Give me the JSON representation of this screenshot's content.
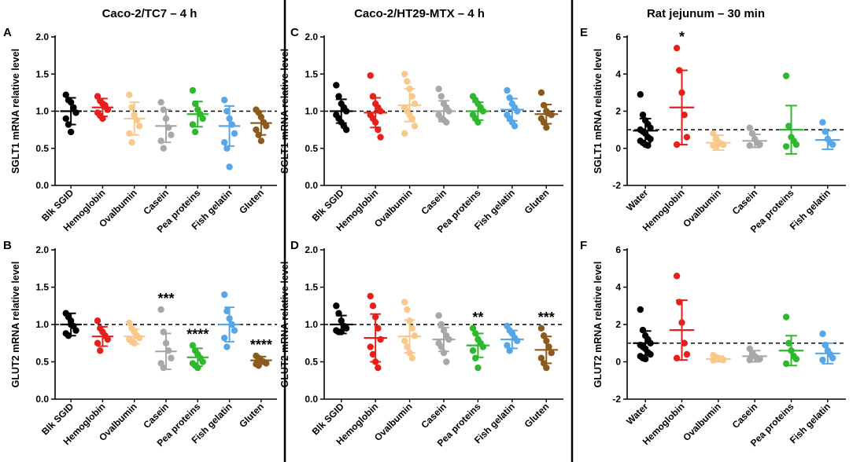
{
  "figure": {
    "columns": [
      {
        "title": "Caco-2/TC7 – 4 h"
      },
      {
        "title": "Caco-2/HT29-MTX – 4 h"
      },
      {
        "title": "Rat jejunum – 30 min"
      }
    ]
  },
  "colors": {
    "black": "#000000",
    "red": "#e8201c",
    "peach": "#f8c98a",
    "gray": "#a8a8a8",
    "green": "#2eb82e",
    "blue": "#56a6e8",
    "brown": "#8c5a1c"
  },
  "chart_data": [
    {
      "id": "A",
      "type": "scatter",
      "column": 0,
      "row": 0,
      "ylabel": "SGLT1 mRNA relative level",
      "ylim": [
        0,
        2.0
      ],
      "yticks": [
        "0.0",
        "0.5",
        "1.0",
        "1.5",
        "2.0"
      ],
      "ytick_values": [
        0,
        0.5,
        1.0,
        1.5,
        2.0
      ],
      "reference_line": 1.0,
      "categories": [
        "Blk SGID",
        "Hemoglobin",
        "Ovalbumin",
        "Casein",
        "Pea proteins",
        "Fish gelatin",
        "Gluten"
      ],
      "series": [
        {
          "name": "Blk SGID",
          "color": "black",
          "points": [
            1.22,
            1.15,
            1.12,
            1.05,
            0.98,
            0.9,
            0.82,
            0.72
          ],
          "mean": 1.0,
          "sd": 0.18,
          "sig": ""
        },
        {
          "name": "Hemoglobin",
          "color": "red",
          "points": [
            1.2,
            1.14,
            1.1,
            1.06,
            1.02,
            0.98,
            0.94,
            0.9,
            1.08
          ],
          "mean": 1.05,
          "sd": 0.12,
          "sig": ""
        },
        {
          "name": "Ovalbumin",
          "color": "peach",
          "points": [
            1.22,
            1.05,
            0.95,
            0.88,
            0.8,
            0.7,
            0.58
          ],
          "mean": 0.9,
          "sd": 0.22,
          "sig": ""
        },
        {
          "name": "Casein",
          "color": "gray",
          "points": [
            1.12,
            1.02,
            0.9,
            0.78,
            0.68,
            0.6,
            0.5
          ],
          "mean": 0.8,
          "sd": 0.22,
          "sig": ""
        },
        {
          "name": "Pea proteins",
          "color": "green",
          "points": [
            1.28,
            1.1,
            1.02,
            0.96,
            0.9,
            0.82,
            0.72
          ],
          "mean": 0.96,
          "sd": 0.17,
          "sig": ""
        },
        {
          "name": "Fish gelatin",
          "color": "blue",
          "points": [
            1.15,
            1.0,
            0.9,
            0.82,
            0.7,
            0.58,
            0.5,
            0.25
          ],
          "mean": 0.8,
          "sd": 0.27,
          "sig": ""
        },
        {
          "name": "Gluten",
          "color": "brown",
          "points": [
            1.02,
            0.98,
            0.92,
            0.85,
            0.8,
            0.75,
            0.68,
            0.6
          ],
          "mean": 0.84,
          "sd": 0.16,
          "sig": ""
        }
      ]
    },
    {
      "id": "B",
      "type": "scatter",
      "column": 0,
      "row": 1,
      "ylabel": "GLUT2 mRNA relative level",
      "ylim": [
        0,
        2.0
      ],
      "yticks": [
        "0.0",
        "0.5",
        "1.0",
        "1.5",
        "2.0"
      ],
      "ytick_values": [
        0,
        0.5,
        1.0,
        1.5,
        2.0
      ],
      "reference_line": 1.0,
      "categories": [
        "Blk SGID",
        "Hemoglobin",
        "Ovalbumin",
        "Casein",
        "Pea proteins",
        "Fish gelatin",
        "Gluten"
      ],
      "series": [
        {
          "name": "Blk SGID",
          "color": "black",
          "points": [
            1.15,
            1.1,
            1.05,
            0.98,
            0.92,
            0.88,
            0.85,
            1.0
          ],
          "mean": 1.0,
          "sd": 0.15,
          "sig": ""
        },
        {
          "name": "Hemoglobin",
          "color": "red",
          "points": [
            1.05,
            0.95,
            0.9,
            0.85,
            0.8,
            0.75,
            0.65
          ],
          "mean": 0.84,
          "sd": 0.13,
          "sig": ""
        },
        {
          "name": "Ovalbumin",
          "color": "peach",
          "points": [
            1.02,
            0.95,
            0.9,
            0.85,
            0.82,
            0.8,
            0.78,
            0.75
          ],
          "mean": 0.84,
          "sd": 0.1,
          "sig": ""
        },
        {
          "name": "Casein",
          "color": "gray",
          "points": [
            1.2,
            0.9,
            0.75,
            0.65,
            0.55,
            0.48,
            0.42
          ],
          "mean": 0.64,
          "sd": 0.24,
          "sig": "***"
        },
        {
          "name": "Pea proteins",
          "color": "green",
          "points": [
            0.72,
            0.65,
            0.6,
            0.55,
            0.5,
            0.48,
            0.45,
            0.42
          ],
          "mean": 0.56,
          "sd": 0.12,
          "sig": "****"
        },
        {
          "name": "Fish gelatin",
          "color": "blue",
          "points": [
            1.4,
            1.18,
            1.08,
            1.0,
            0.92,
            0.82,
            0.7
          ],
          "mean": 1.0,
          "sd": 0.23,
          "sig": ""
        },
        {
          "name": "Gluten",
          "color": "brown",
          "points": [
            0.58,
            0.55,
            0.52,
            0.5,
            0.48,
            0.47,
            0.45
          ],
          "mean": 0.52,
          "sd": 0.05,
          "sig": "****"
        }
      ]
    },
    {
      "id": "C",
      "type": "scatter",
      "column": 1,
      "row": 0,
      "ylabel": "SGLT1 mRNA relative level",
      "ylim": [
        0,
        2.0
      ],
      "yticks": [
        "0.0",
        "0.5",
        "1.0",
        "1.5",
        "2.0"
      ],
      "ytick_values": [
        0,
        0.5,
        1.0,
        1.5,
        2.0
      ],
      "reference_line": 1.0,
      "categories": [
        "Blk SGID",
        "Hemoglobin",
        "Ovalbumin",
        "Casein",
        "Pea proteins",
        "Fish gelatin",
        "Gluten"
      ],
      "series": [
        {
          "name": "Blk SGID",
          "color": "black",
          "points": [
            1.35,
            1.2,
            1.1,
            1.05,
            1.0,
            0.95,
            0.9,
            0.85,
            0.8,
            0.75
          ],
          "mean": 1.0,
          "sd": 0.16,
          "sig": ""
        },
        {
          "name": "Hemoglobin",
          "color": "red",
          "points": [
            1.48,
            1.2,
            1.1,
            1.05,
            1.0,
            0.95,
            0.9,
            0.85,
            0.75,
            0.65
          ],
          "mean": 0.98,
          "sd": 0.2,
          "sig": ""
        },
        {
          "name": "Ovalbumin",
          "color": "peach",
          "points": [
            1.5,
            1.4,
            1.3,
            1.2,
            1.1,
            1.05,
            1.0,
            0.95,
            0.9,
            0.8,
            0.7
          ],
          "mean": 1.08,
          "sd": 0.22,
          "sig": ""
        },
        {
          "name": "Casein",
          "color": "gray",
          "points": [
            1.3,
            1.2,
            1.1,
            1.05,
            1.0,
            0.95,
            0.9,
            0.88,
            0.85
          ],
          "mean": 1.0,
          "sd": 0.14,
          "sig": ""
        },
        {
          "name": "Pea proteins",
          "color": "green",
          "points": [
            1.2,
            1.15,
            1.1,
            1.05,
            1.0,
            0.95,
            0.9,
            0.85
          ],
          "mean": 1.0,
          "sd": 0.12,
          "sig": ""
        },
        {
          "name": "Fish gelatin",
          "color": "blue",
          "points": [
            1.28,
            1.18,
            1.1,
            1.05,
            1.0,
            0.95,
            0.9,
            0.85,
            0.8
          ],
          "mean": 1.02,
          "sd": 0.15,
          "sig": ""
        },
        {
          "name": "Gluten",
          "color": "brown",
          "points": [
            1.25,
            1.08,
            1.0,
            0.97,
            0.95,
            0.9,
            0.85,
            0.78
          ],
          "mean": 0.96,
          "sd": 0.13,
          "sig": ""
        }
      ]
    },
    {
      "id": "D",
      "type": "scatter",
      "column": 1,
      "row": 1,
      "ylabel": "GLUT2 mRNA relative level",
      "ylim": [
        0,
        2.0
      ],
      "yticks": [
        "0.0",
        "0.5",
        "1.0",
        "1.5",
        "2.0"
      ],
      "ytick_values": [
        0,
        0.5,
        1.0,
        1.5,
        2.0
      ],
      "reference_line": 1.0,
      "categories": [
        "Blk SGID",
        "Hemoglobin",
        "Ovalbumin",
        "Casein",
        "Pea proteins",
        "Fish gelatin",
        "Gluten"
      ],
      "series": [
        {
          "name": "Blk SGID",
          "color": "black",
          "points": [
            1.25,
            1.15,
            1.05,
            0.98,
            0.95,
            0.92,
            0.9,
            0.9
          ],
          "mean": 1.0,
          "sd": 0.12,
          "sig": ""
        },
        {
          "name": "Hemoglobin",
          "color": "red",
          "points": [
            1.38,
            1.25,
            1.1,
            0.95,
            0.8,
            0.7,
            0.6,
            0.5,
            0.42
          ],
          "mean": 0.82,
          "sd": 0.32,
          "sig": ""
        },
        {
          "name": "Ovalbumin",
          "color": "peach",
          "points": [
            1.3,
            1.2,
            1.05,
            0.95,
            0.85,
            0.78,
            0.7,
            0.62,
            0.55
          ],
          "mean": 0.84,
          "sd": 0.22,
          "sig": ""
        },
        {
          "name": "Casein",
          "color": "gray",
          "points": [
            1.12,
            1.0,
            0.92,
            0.85,
            0.8,
            0.75,
            0.7,
            0.62,
            0.5
          ],
          "mean": 0.8,
          "sd": 0.16,
          "sig": ""
        },
        {
          "name": "Pea proteins",
          "color": "green",
          "points": [
            0.95,
            0.88,
            0.8,
            0.75,
            0.7,
            0.65,
            0.55,
            0.42
          ],
          "mean": 0.72,
          "sd": 0.16,
          "sig": "**"
        },
        {
          "name": "Fish gelatin",
          "color": "blue",
          "points": [
            0.98,
            0.92,
            0.88,
            0.82,
            0.78,
            0.72,
            0.65
          ],
          "mean": 0.8,
          "sd": 0.12,
          "sig": ""
        },
        {
          "name": "Gluten",
          "color": "brown",
          "points": [
            0.95,
            0.85,
            0.78,
            0.7,
            0.62,
            0.55,
            0.48,
            0.42
          ],
          "mean": 0.66,
          "sd": 0.18,
          "sig": "***"
        }
      ]
    },
    {
      "id": "E",
      "type": "scatter",
      "column": 2,
      "row": 0,
      "ylabel": "SGLT1 mRNA relative level",
      "ylim": [
        -2,
        6
      ],
      "yticks": [
        "-2",
        "0",
        "2",
        "4",
        "6"
      ],
      "ytick_values": [
        -2,
        0,
        2,
        4,
        6
      ],
      "reference_line": 1.0,
      "categories": [
        "Water",
        "Hemoglobin",
        "Ovalbumin",
        "Casein",
        "Pea proteins",
        "Fish gelatin"
      ],
      "series": [
        {
          "name": "Water",
          "color": "black",
          "points": [
            2.9,
            1.8,
            1.5,
            1.3,
            1.1,
            1.0,
            0.9,
            0.8,
            0.6,
            0.5,
            0.4,
            0.3,
            0.2,
            0.15
          ],
          "mean": 0.95,
          "sd": 0.65,
          "sig": ""
        },
        {
          "name": "Hemoglobin",
          "color": "red",
          "points": [
            5.4,
            4.2,
            3.0,
            1.8,
            0.6,
            0.2
          ],
          "mean": 2.2,
          "sd": 2.0,
          "sig": "*"
        },
        {
          "name": "Ovalbumin",
          "color": "peach",
          "points": [
            0.8,
            0.5,
            0.35,
            0.25,
            0.2,
            0.15,
            0.1
          ],
          "mean": 0.3,
          "sd": 0.4,
          "sig": ""
        },
        {
          "name": "Casein",
          "color": "gray",
          "points": [
            1.1,
            0.8,
            0.5,
            0.3,
            0.2,
            0.15
          ],
          "mean": 0.4,
          "sd": 0.35,
          "sig": ""
        },
        {
          "name": "Pea proteins",
          "color": "green",
          "points": [
            3.9,
            1.2,
            0.6,
            0.4,
            0.2,
            0.1
          ],
          "mean": 1.0,
          "sd": 1.3,
          "sig": ""
        },
        {
          "name": "Fish gelatin",
          "color": "blue",
          "points": [
            1.4,
            0.9,
            0.5,
            0.3,
            0.2
          ],
          "mean": 0.45,
          "sd": 0.5,
          "sig": ""
        }
      ]
    },
    {
      "id": "F",
      "type": "scatter",
      "column": 2,
      "row": 1,
      "ylabel": "GLUT2 mRNA relative level",
      "ylim": [
        -2,
        6
      ],
      "yticks": [
        "-2",
        "0",
        "2",
        "4",
        "6"
      ],
      "ytick_values": [
        -2,
        0,
        2,
        4,
        6
      ],
      "reference_line": 1.0,
      "categories": [
        "Water",
        "Hemoglobin",
        "Ovalbumin",
        "Casein",
        "Pea proteins",
        "Fish gelatin"
      ],
      "series": [
        {
          "name": "Water",
          "color": "black",
          "points": [
            2.8,
            1.7,
            1.4,
            1.2,
            1.0,
            0.9,
            0.8,
            0.7,
            0.5,
            0.4,
            0.3,
            0.2,
            0.15
          ],
          "mean": 1.0,
          "sd": 0.65,
          "sig": ""
        },
        {
          "name": "Hemoglobin",
          "color": "red",
          "points": [
            4.6,
            3.2,
            2.1,
            1.0,
            0.4,
            0.2
          ],
          "mean": 1.7,
          "sd": 1.6,
          "sig": ""
        },
        {
          "name": "Ovalbumin",
          "color": "peach",
          "points": [
            0.35,
            0.25,
            0.2,
            0.15,
            0.1,
            0.08
          ],
          "mean": 0.15,
          "sd": 0.15,
          "sig": ""
        },
        {
          "name": "Casein",
          "color": "gray",
          "points": [
            0.7,
            0.45,
            0.3,
            0.2,
            0.15,
            0.1
          ],
          "mean": 0.3,
          "sd": 0.3,
          "sig": ""
        },
        {
          "name": "Pea proteins",
          "color": "green",
          "points": [
            2.4,
            1.0,
            0.6,
            0.3,
            0.15,
            -0.1
          ],
          "mean": 0.6,
          "sd": 0.8,
          "sig": ""
        },
        {
          "name": "Fish gelatin",
          "color": "blue",
          "points": [
            1.5,
            0.9,
            0.6,
            0.4,
            0.2,
            0.1
          ],
          "mean": 0.45,
          "sd": 0.55,
          "sig": ""
        }
      ]
    }
  ]
}
